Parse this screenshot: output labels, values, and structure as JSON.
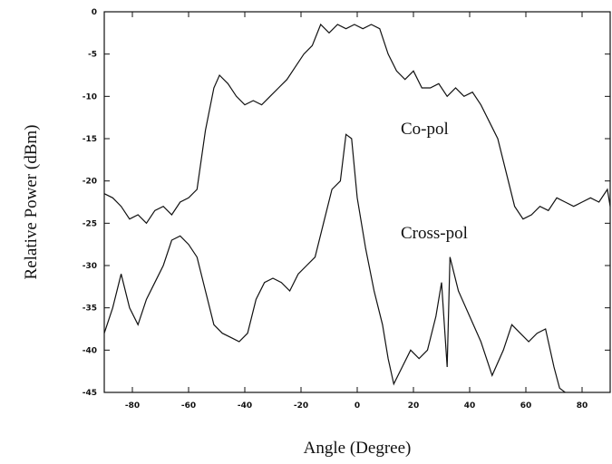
{
  "chart_data": {
    "type": "line",
    "x_label": "Angle (Degree)",
    "y_label": "Relative Power (dBm)",
    "annotations": [
      "Co-pol",
      "Cross-pol"
    ],
    "xlim": [
      -90,
      90
    ],
    "xticks": [
      -80,
      -60,
      -40,
      -20,
      0,
      20,
      40,
      60,
      80
    ],
    "ylim": [
      -45,
      0
    ],
    "yticks": [
      0,
      -5,
      -10,
      -15,
      -20,
      -25,
      -30,
      -35,
      -40,
      -45
    ],
    "series": [
      {
        "color": "#111111",
        "x": [
          -90,
          -87,
          -84,
          -81,
          -78,
          -75,
          -72,
          -69,
          -66,
          -63,
          -60,
          -57,
          -54,
          -51,
          -49,
          -46,
          -43,
          -40,
          -37,
          -34,
          -31,
          -28,
          -25,
          -22,
          -19,
          -16,
          -13,
          -10,
          -7,
          -4,
          -1,
          2,
          5,
          8,
          11,
          14,
          17,
          20,
          23,
          26,
          29,
          32,
          35,
          38,
          41,
          44,
          47,
          50,
          53,
          56,
          59,
          62,
          65,
          68,
          71,
          74,
          77,
          80,
          83,
          86,
          89,
          90
        ],
        "values": [
          -21.5,
          -22,
          -23,
          -24.5,
          -24,
          -25,
          -23.5,
          -23,
          -24,
          -22.5,
          -22,
          -21,
          -14,
          -9,
          -7.5,
          -8.5,
          -10,
          -11,
          -10.5,
          -11,
          -10,
          -9,
          -8,
          -6.5,
          -5,
          -4,
          -1.5,
          -2.5,
          -1.5,
          -2,
          -1.5,
          -2,
          -1.5,
          -2,
          -5,
          -7,
          -8,
          -7,
          -9,
          -9,
          -8.5,
          -10,
          -9,
          -10,
          -9.5,
          -11,
          -13,
          -15,
          -19,
          -23,
          -24.5,
          -24,
          -23,
          -23.5,
          -22,
          -22.5,
          -23,
          -22.5,
          -22,
          -22.5,
          -21,
          -23
        ]
      },
      {
        "color": "#111111",
        "x": [
          -90,
          -87,
          -84,
          -81,
          -78,
          -75,
          -72,
          -69,
          -66,
          -63,
          -60,
          -57,
          -54,
          -51,
          -48,
          -45,
          -42,
          -39,
          -36,
          -33,
          -30,
          -27,
          -24,
          -21,
          -18,
          -15,
          -12,
          -9,
          -6,
          -4,
          -2,
          0,
          3,
          6,
          9,
          11,
          13,
          16,
          19,
          22,
          25,
          28,
          30,
          32,
          33,
          36,
          40,
          44,
          48,
          52,
          55,
          58,
          61,
          64,
          67,
          70,
          72,
          74
        ],
        "values": [
          -38,
          -35,
          -31,
          -35,
          -37,
          -34,
          -32,
          -30,
          -27,
          -26.5,
          -27.5,
          -29,
          -33,
          -37,
          -38,
          -38.5,
          -39,
          -38,
          -34,
          -32,
          -31.5,
          -32,
          -33,
          -31,
          -30,
          -29,
          -25,
          -21,
          -20,
          -14.5,
          -15,
          -22,
          -28,
          -33,
          -37,
          -41,
          -44,
          -42,
          -40,
          -41,
          -40,
          -36,
          -32,
          -42,
          -29,
          -33,
          -36,
          -39,
          -43,
          -40,
          -37,
          -38,
          -39,
          -38,
          -37.5,
          -42,
          -44.5,
          -45
        ]
      }
    ]
  }
}
